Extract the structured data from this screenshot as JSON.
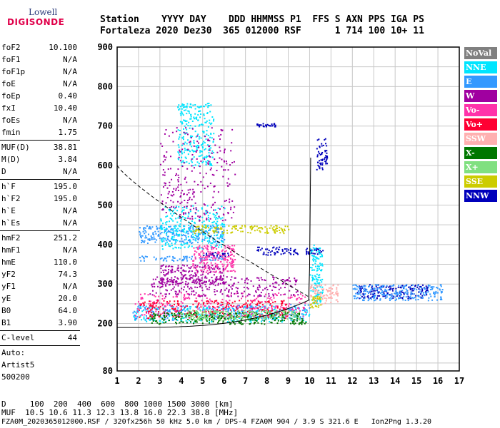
{
  "logo": {
    "top": "Lowell",
    "main": "DIGISONDE"
  },
  "header": {
    "line1": "Station    YYYY DAY    DDD HHMMSS P1  FFS S AXN PPS IGA PS",
    "line2": "Fortaleza 2020 Dez30  365 012000 RSF      1 714 100 10+ 11"
  },
  "params_a": [
    {
      "k": "foF2",
      "v": "10.100"
    },
    {
      "k": "foF1",
      "v": "N/A"
    },
    {
      "k": "foF1p",
      "v": "N/A"
    },
    {
      "k": "foE",
      "v": "N/A"
    },
    {
      "k": "foEp",
      "v": "0.40"
    },
    {
      "k": "fxI",
      "v": "10.40"
    },
    {
      "k": "foEs",
      "v": "N/A"
    },
    {
      "k": "fmin",
      "v": "1.75"
    }
  ],
  "params_b": [
    {
      "k": "MUF(D)",
      "v": "38.81"
    },
    {
      "k": "M(D)",
      "v": "3.84"
    },
    {
      "k": "D",
      "v": "N/A"
    }
  ],
  "params_c": [
    {
      "k": "h`F",
      "v": "195.0"
    },
    {
      "k": "h`F2",
      "v": "195.0"
    },
    {
      "k": "h`E",
      "v": "N/A"
    },
    {
      "k": "h`Es",
      "v": "N/A"
    }
  ],
  "params_d": [
    {
      "k": "hmF2",
      "v": "251.2"
    },
    {
      "k": "hmF1",
      "v": "N/A"
    },
    {
      "k": "hmE",
      "v": "110.0"
    },
    {
      "k": "yF2",
      "v": "74.3"
    },
    {
      "k": "yF1",
      "v": "N/A"
    },
    {
      "k": "yE",
      "v": "20.0"
    },
    {
      "k": "B0",
      "v": "64.0"
    },
    {
      "k": "B1",
      "v": "3.90"
    }
  ],
  "params_e": [
    {
      "k": "C-level",
      "v": "44"
    }
  ],
  "auto": {
    "l1": "Auto:",
    "l2": "Artist5",
    "l3": "500200"
  },
  "legend": [
    {
      "label": "NoVal",
      "color": "#808080"
    },
    {
      "label": "NNE",
      "color": "#00e5ff"
    },
    {
      "label": "E",
      "color": "#3399ff"
    },
    {
      "label": "W",
      "color": "#a000a0"
    },
    {
      "label": "Vo-",
      "color": "#ff33aa"
    },
    {
      "label": "Vo+",
      "color": "#ff0033"
    },
    {
      "label": "SSW",
      "color": "#ffb0b0"
    },
    {
      "label": "X-",
      "color": "#007700"
    },
    {
      "label": "X+",
      "color": "#80e080"
    },
    {
      "label": "SSE",
      "color": "#cccc00"
    },
    {
      "label": "NNW",
      "color": "#0000bb"
    }
  ],
  "footer": {
    "line1": "D     100  200  400  600  800 1000 1500 3000 [km]",
    "line2": "MUF  10.5 10.6 11.3 12.3 13.8 16.0 22.3 38.8 [MHz]",
    "line3": "FZA0M_2020365012000.RSF / 320fx256h 50 kHz 5.0 km / DPS-4 FZA0M 904 / 3.9 S 321.6 E   Ion2Png 1.3.20"
  },
  "chart_data": {
    "type": "scatter",
    "title": "",
    "xlabel": "",
    "ylabel": "",
    "xlim": [
      1,
      17
    ],
    "ylim": [
      80,
      900
    ],
    "x_ticks": [
      1,
      2,
      3,
      4,
      5,
      6,
      7,
      8,
      9,
      10,
      11,
      12,
      13,
      14,
      15,
      16,
      17
    ],
    "y_ticks": [
      80,
      200,
      300,
      400,
      500,
      600,
      700,
      800,
      900
    ],
    "grid": true,
    "clusters": [
      {
        "series": "NNE",
        "fmin": 1.7,
        "fmax": 10.0,
        "hmin": 205,
        "hmax": 245
      },
      {
        "series": "E",
        "fmin": 1.7,
        "fmax": 10.0,
        "hmin": 210,
        "hmax": 250
      },
      {
        "series": "Vo-",
        "fmin": 1.8,
        "fmax": 9.8,
        "hmin": 220,
        "hmax": 280
      },
      {
        "series": "W",
        "fmin": 2.5,
        "fmax": 9.5,
        "hmin": 270,
        "hmax": 320
      },
      {
        "series": "Vo+",
        "fmin": 2.0,
        "fmax": 9.0,
        "hmin": 215,
        "hmax": 260
      },
      {
        "series": "X-",
        "fmin": 2.5,
        "fmax": 9.8,
        "hmin": 200,
        "hmax": 230
      },
      {
        "series": "X+",
        "fmin": 4.0,
        "fmax": 9.5,
        "hmin": 210,
        "hmax": 235
      },
      {
        "series": "E",
        "fmin": 2.0,
        "fmax": 6.0,
        "hmin": 405,
        "hmax": 450
      },
      {
        "series": "NNE",
        "fmin": 3.0,
        "fmax": 6.0,
        "hmin": 390,
        "hmax": 500
      },
      {
        "series": "SSE",
        "fmin": 4.5,
        "fmax": 9.0,
        "hmin": 430,
        "hmax": 450
      },
      {
        "series": "E",
        "fmin": 2.0,
        "fmax": 6.0,
        "hmin": 360,
        "hmax": 372
      },
      {
        "series": "NNW",
        "fmin": 5.0,
        "fmax": 6.2,
        "hmin": 372,
        "hmax": 382
      },
      {
        "series": "NNW",
        "fmin": 7.5,
        "fmax": 9.5,
        "hmin": 375,
        "hmax": 395
      },
      {
        "series": "NNW",
        "fmin": 9.8,
        "fmax": 10.6,
        "hmin": 375,
        "hmax": 392
      },
      {
        "series": "W",
        "fmin": 3.0,
        "fmax": 6.0,
        "hmin": 300,
        "hmax": 350
      },
      {
        "series": "Vo-",
        "fmin": 4.5,
        "fmax": 6.5,
        "hmin": 330,
        "hmax": 400
      },
      {
        "series": "NNE",
        "fmin": 3.8,
        "fmax": 5.5,
        "hmin": 600,
        "hmax": 760
      },
      {
        "series": "W",
        "fmin": 3.0,
        "fmax": 6.5,
        "hmin": 460,
        "hmax": 700
      },
      {
        "series": "NNW",
        "fmin": 7.5,
        "fmax": 8.4,
        "hmin": 700,
        "hmax": 708
      },
      {
        "series": "NNW",
        "fmin": 10.3,
        "fmax": 10.8,
        "hmin": 590,
        "hmax": 670
      },
      {
        "series": "NNE",
        "fmin": 10.0,
        "fmax": 10.6,
        "hmin": 250,
        "hmax": 400
      },
      {
        "series": "SSW",
        "fmin": 10.0,
        "fmax": 11.3,
        "hmin": 250,
        "hmax": 300
      },
      {
        "series": "SSE",
        "fmin": 10.0,
        "fmax": 10.5,
        "hmin": 240,
        "hmax": 270
      },
      {
        "series": "NNW",
        "fmin": 12.2,
        "fmax": 15.5,
        "hmin": 265,
        "hmax": 300
      },
      {
        "series": "E",
        "fmin": 12.0,
        "fmax": 16.2,
        "hmin": 260,
        "hmax": 300
      }
    ]
  }
}
